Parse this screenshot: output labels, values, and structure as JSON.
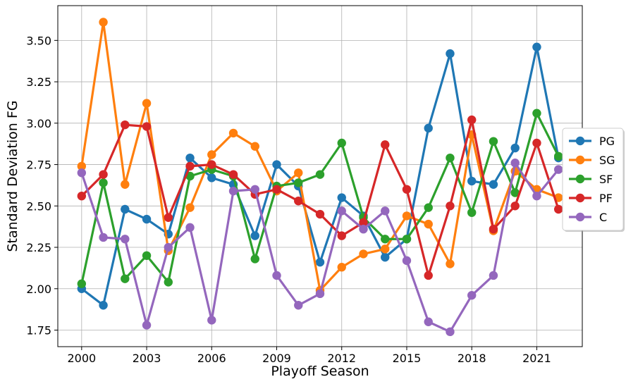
{
  "chart_data": {
    "type": "line",
    "xlabel": "Playoff Season",
    "ylabel": "Standard Deviation FG",
    "x": [
      2000,
      2001,
      2002,
      2003,
      2004,
      2005,
      2006,
      2007,
      2008,
      2009,
      2010,
      2011,
      2012,
      2013,
      2014,
      2015,
      2016,
      2017,
      2018,
      2019,
      2020,
      2021,
      2022
    ],
    "xticks": [
      "2000",
      "2003",
      "2006",
      "2009",
      "2012",
      "2015",
      "2018",
      "2021"
    ],
    "yticks": [
      "1.75",
      "2.00",
      "2.25",
      "2.50",
      "2.75",
      "3.00",
      "3.25",
      "3.50"
    ],
    "xlim": [
      1998.9,
      2023.1
    ],
    "ylim": [
      1.65,
      3.71
    ],
    "grid": true,
    "legend_position": "right",
    "series": [
      {
        "name": "PG",
        "color": "#1f77b4",
        "values": [
          2.0,
          1.9,
          2.48,
          2.42,
          2.33,
          2.79,
          2.67,
          2.63,
          2.32,
          2.75,
          2.62,
          2.16,
          2.55,
          2.44,
          2.19,
          2.3,
          2.97,
          3.42,
          2.65,
          2.63,
          2.85,
          3.46,
          2.79
        ]
      },
      {
        "name": "SG",
        "color": "#ff7f0e",
        "values": [
          2.74,
          3.61,
          2.63,
          3.12,
          2.23,
          2.49,
          2.81,
          2.94,
          2.86,
          2.59,
          2.7,
          1.99,
          2.13,
          2.21,
          2.24,
          2.44,
          2.39,
          2.15,
          2.93,
          2.35,
          2.71,
          2.6,
          2.55
        ]
      },
      {
        "name": "SF",
        "color": "#2ca02c",
        "values": [
          2.03,
          2.64,
          2.06,
          2.2,
          2.04,
          2.68,
          2.72,
          2.68,
          2.18,
          2.62,
          2.64,
          2.69,
          2.88,
          2.43,
          2.3,
          2.3,
          2.49,
          2.79,
          2.46,
          2.89,
          2.58,
          3.06,
          2.8
        ]
      },
      {
        "name": "PF",
        "color": "#d62728",
        "values": [
          2.56,
          2.69,
          2.99,
          2.98,
          2.43,
          2.74,
          2.75,
          2.69,
          2.57,
          2.6,
          2.53,
          2.45,
          2.32,
          2.4,
          2.87,
          2.6,
          2.08,
          2.5,
          3.02,
          2.36,
          2.5,
          2.88,
          2.48
        ]
      },
      {
        "name": "C",
        "color": "#9467bd",
        "values": [
          2.7,
          2.31,
          2.3,
          1.78,
          2.25,
          2.37,
          1.81,
          2.59,
          2.6,
          2.08,
          1.9,
          1.97,
          2.47,
          2.36,
          2.47,
          2.17,
          1.8,
          1.74,
          1.96,
          2.08,
          2.76,
          2.56,
          2.72
        ]
      }
    ]
  }
}
